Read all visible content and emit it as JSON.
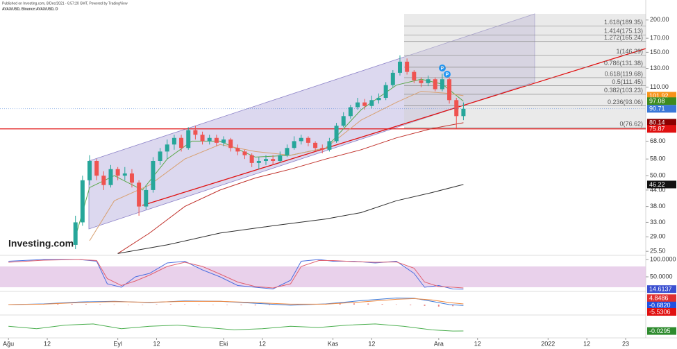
{
  "chart_data": {
    "type": "candlestick",
    "header": [
      "Published on Investing.com, 8/Dec/2021 - 6:57:20 GMT, Powered by TradingView",
      "AVAX/USD, Binance:AVAX/USD, D"
    ],
    "watermark": "Investing.com",
    "log_scale": true,
    "xlim": [
      -2.4,
      180.7
    ],
    "xticks": [
      {
        "value": 0,
        "label": "Ağu"
      },
      {
        "value": 11,
        "label": "12"
      },
      {
        "value": 31,
        "label": "Eyl"
      },
      {
        "value": 42,
        "label": "12"
      },
      {
        "value": 61,
        "label": "Eki"
      },
      {
        "value": 72,
        "label": "12"
      },
      {
        "value": 92,
        "label": "Kas"
      },
      {
        "value": 103,
        "label": "12"
      },
      {
        "value": 122,
        "label": "Ara"
      },
      {
        "value": 133,
        "label": "12"
      },
      {
        "value": 153,
        "label": "2022"
      },
      {
        "value": 164,
        "label": "12"
      },
      {
        "value": 175,
        "label": "23"
      }
    ],
    "ylim": [
      24.6,
      239
    ],
    "yticks": [
      {
        "value": 200,
        "label": "200.00"
      },
      {
        "value": 170,
        "label": "170.00"
      },
      {
        "value": 150,
        "label": "150.00"
      },
      {
        "value": 130,
        "label": "130.00"
      },
      {
        "value": 110,
        "label": "110.00"
      },
      {
        "value": 68,
        "label": "68.00"
      },
      {
        "value": 58,
        "label": "58.00"
      },
      {
        "value": 50,
        "label": "50.00"
      },
      {
        "value": 44,
        "label": "44.00"
      },
      {
        "value": 38,
        "label": "38.00"
      },
      {
        "value": 33,
        "label": "33.00"
      },
      {
        "value": 29,
        "label": "29.00"
      },
      {
        "value": 25.5,
        "label": "25.50"
      }
    ],
    "candles": {
      "x": [
        19,
        21,
        23,
        25,
        27,
        29,
        31,
        33,
        35,
        37,
        39,
        41,
        43,
        45,
        47,
        49,
        51,
        53,
        55,
        57,
        59,
        61,
        63,
        65,
        67,
        69,
        71,
        73,
        75,
        77,
        79,
        81,
        83,
        85,
        87,
        89,
        91,
        93,
        95,
        97,
        99,
        101,
        103,
        105,
        107,
        109,
        111,
        113,
        115,
        117,
        119,
        121,
        123,
        125,
        127,
        129
      ],
      "open": [
        27,
        33,
        48,
        57,
        50,
        46,
        53,
        50,
        51,
        47,
        38,
        44,
        57,
        62,
        66,
        70,
        64,
        75,
        72,
        68,
        70,
        67,
        69,
        64,
        62,
        60,
        56,
        57,
        58,
        57,
        60,
        64,
        68,
        70,
        67,
        64,
        63,
        68,
        78,
        85,
        92,
        96,
        93,
        98,
        100,
        112,
        125,
        138,
        126,
        117,
        114,
        118,
        108,
        118,
        98,
        85
      ],
      "high": [
        35,
        50,
        60,
        58,
        52,
        55,
        54,
        54,
        53,
        48,
        46,
        59,
        64,
        69,
        72,
        72,
        77,
        78,
        74,
        72,
        72,
        71,
        70,
        66,
        63,
        61,
        59,
        60,
        60,
        62,
        66,
        71,
        72,
        71,
        68,
        66,
        70,
        80,
        88,
        94,
        100,
        99,
        102,
        104,
        115,
        128,
        146,
        142,
        128,
        120,
        122,
        120,
        124,
        120,
        100,
        96
      ],
      "low": [
        26,
        32,
        46,
        48,
        44,
        45,
        48,
        48,
        45,
        35,
        37,
        43,
        55,
        58,
        63,
        62,
        63,
        69,
        66,
        66,
        65,
        65,
        62,
        60,
        58,
        54,
        53,
        55,
        55,
        56,
        59,
        63,
        66,
        65,
        62,
        61,
        62,
        67,
        77,
        83,
        90,
        90,
        91,
        95,
        98,
        110,
        122,
        123,
        114,
        110,
        111,
        106,
        106,
        95,
        76,
        82
      ],
      "close": [
        33,
        48,
        57,
        50,
        46,
        53,
        50,
        51,
        47,
        38,
        44,
        57,
        62,
        66,
        70,
        64,
        75,
        72,
        68,
        70,
        67,
        69,
        64,
        62,
        60,
        56,
        57,
        58,
        57,
        60,
        64,
        68,
        70,
        67,
        64,
        63,
        68,
        78,
        85,
        92,
        96,
        93,
        98,
        100,
        112,
        125,
        138,
        126,
        117,
        114,
        118,
        108,
        118,
        98,
        85,
        90.71
      ],
      "up_color": "#26a69a",
      "down_color": "#ef5350"
    },
    "series": [
      {
        "color": "#5aa84a",
        "x": [
          19,
          23,
          30,
          38,
          45,
          52,
          60,
          70,
          80,
          90,
          100,
          110,
          117,
          123,
          129
        ],
        "values": [
          29,
          45,
          50,
          44,
          58,
          68,
          68,
          59,
          60,
          64,
          90,
          112,
          118,
          113,
          97.08
        ]
      },
      {
        "color": "#d8a070",
        "x": [
          23,
          30,
          40,
          50,
          60,
          70,
          80,
          90,
          100,
          110,
          117,
          125,
          129
        ],
        "values": [
          28,
          40,
          46,
          58,
          66,
          62,
          60,
          64,
          82,
          96,
          106,
          104,
          101.92
        ]
      },
      {
        "color": "#c0302a",
        "x": [
          31,
          40,
          50,
          60,
          70,
          80,
          90,
          100,
          110,
          120,
          129
        ],
        "values": [
          25,
          30,
          38,
          44,
          49,
          53,
          58,
          63,
          70,
          76,
          80.14
        ]
      },
      {
        "color": "#2b2b2b",
        "x": [
          31,
          45,
          60,
          75,
          90,
          100,
          110,
          120,
          129
        ],
        "values": [
          25,
          27,
          30,
          32,
          34,
          36,
          40,
          43,
          46.22
        ]
      }
    ],
    "hline": {
      "value": 75.87,
      "color": "#e01010"
    },
    "fib_levels": [
      {
        "value": 189.35,
        "label": "1.618(189.35)"
      },
      {
        "value": 175.13,
        "label": "1.414(175.13)"
      },
      {
        "value": 165.24,
        "label": "1.272(165.24)"
      },
      {
        "value": 146.29,
        "label": "1(146.29)"
      },
      {
        "value": 131.38,
        "label": "0.786(131.38)"
      },
      {
        "value": 119.68,
        "label": "0.618(119.68)"
      },
      {
        "value": 111.45,
        "label": "0.5(111.45)"
      },
      {
        "value": 103.23,
        "label": "0.382(103.23)"
      },
      {
        "value": 93.06,
        "label": "0.236(93.06)"
      },
      {
        "value": 76.62,
        "label": "0(76.62)"
      }
    ],
    "price_tags": [
      {
        "value": 101.92,
        "color": "#f7931a"
      },
      {
        "value": 97.08,
        "color": "#3d8b1f"
      },
      {
        "value": 90.71,
        "color": "#3a78d8"
      },
      {
        "value": 80.14,
        "color": "#8b0000"
      },
      {
        "value": 75.87,
        "color": "#e01010"
      },
      {
        "value": 46.22,
        "color": "#111111"
      }
    ],
    "event_markers": [
      "P",
      "P"
    ],
    "stochastic": {
      "ylim": [
        8,
        112
      ],
      "yticks": [
        {
          "value": 100,
          "label": "100.0000"
        },
        {
          "value": 50,
          "label": "50.0000"
        }
      ],
      "band": [
        20,
        80
      ],
      "x": [
        0,
        10,
        20,
        25,
        28,
        32,
        36,
        40,
        45,
        50,
        55,
        60,
        65,
        70,
        75,
        80,
        83,
        88,
        92,
        98,
        104,
        110,
        115,
        118,
        122,
        126,
        129
      ],
      "series": [
        {
          "color": "#4a6ee0",
          "values": [
            95,
            100,
            100,
            95,
            30,
            20,
            50,
            60,
            90,
            95,
            70,
            50,
            25,
            20,
            15,
            40,
            95,
            100,
            95,
            95,
            90,
            95,
            60,
            20,
            25,
            15,
            14.6
          ]
        },
        {
          "color": "#e06070",
          "values": [
            92,
            98,
            100,
            97,
            45,
            25,
            38,
            55,
            80,
            92,
            80,
            58,
            35,
            22,
            18,
            30,
            80,
            97,
            97,
            94,
            92,
            93,
            75,
            35,
            22,
            20,
            18
          ]
        }
      ],
      "tags": [
        {
          "value": 14.6137,
          "color": "#3a4fd0"
        }
      ]
    },
    "macd": {
      "ylim": [
        -7.9,
        10
      ],
      "x": [
        0,
        10,
        20,
        30,
        40,
        50,
        60,
        70,
        80,
        90,
        100,
        110,
        115,
        120,
        125,
        129
      ],
      "series": [
        {
          "color": "#3a78d8",
          "values": [
            0,
            0.5,
            2,
            2.5,
            1.5,
            2.8,
            2.5,
            1,
            -0.5,
            0.5,
            3,
            5,
            4.8,
            2.5,
            0,
            -0.68
          ]
        },
        {
          "color": "#f08a40",
          "values": [
            0,
            0.3,
            1.5,
            2.2,
            1.8,
            2.4,
            2.5,
            1.5,
            0.3,
            0.3,
            2,
            4,
            4.5,
            3.5,
            1.5,
            0.5
          ]
        }
      ],
      "histogram": {
        "color": "#e05050",
        "x": [
          2,
          6,
          10,
          14,
          18,
          22,
          26,
          30,
          34,
          38,
          42,
          46,
          50,
          54,
          58,
          62,
          66,
          70,
          74,
          78,
          82,
          86,
          90,
          94,
          98,
          102,
          106,
          110,
          114,
          118,
          122,
          126
        ],
        "values": [
          0.2,
          0.3,
          0.4,
          0.5,
          0.6,
          0.4,
          0.2,
          0.1,
          -0.2,
          -0.3,
          0.3,
          0.4,
          0.3,
          0.1,
          0,
          -0.3,
          -0.5,
          -0.6,
          -0.4,
          -0.2,
          0.1,
          0.3,
          0.6,
          0.8,
          0.9,
          0.8,
          0.5,
          0.2,
          -0.5,
          -1.0,
          -1.5,
          -1.2
        ]
      },
      "tags": [
        {
          "value": 4.8486,
          "color": "#e03030"
        },
        {
          "value": -0.682,
          "label": "-0.6820",
          "color": "#2050e0"
        },
        {
          "value": -5.5306,
          "color": "#e01010"
        }
      ]
    },
    "oscillator": {
      "ylim": [
        -0.088,
        0.106
      ],
      "x": [
        0,
        8,
        16,
        24,
        32,
        40,
        48,
        56,
        64,
        72,
        80,
        88,
        96,
        104,
        112,
        120,
        126,
        129
      ],
      "series": [
        {
          "color": "#4caf50",
          "values": [
            0.01,
            -0.01,
            0.02,
            0.03,
            -0.01,
            0.01,
            0.02,
            0,
            -0.02,
            -0.01,
            0.01,
            0,
            0.02,
            0.03,
            0.01,
            -0.02,
            -0.03,
            -0.0295
          ]
        }
      ],
      "tags": [
        {
          "value": -0.0295,
          "color": "#2e8b2e"
        }
      ]
    }
  }
}
